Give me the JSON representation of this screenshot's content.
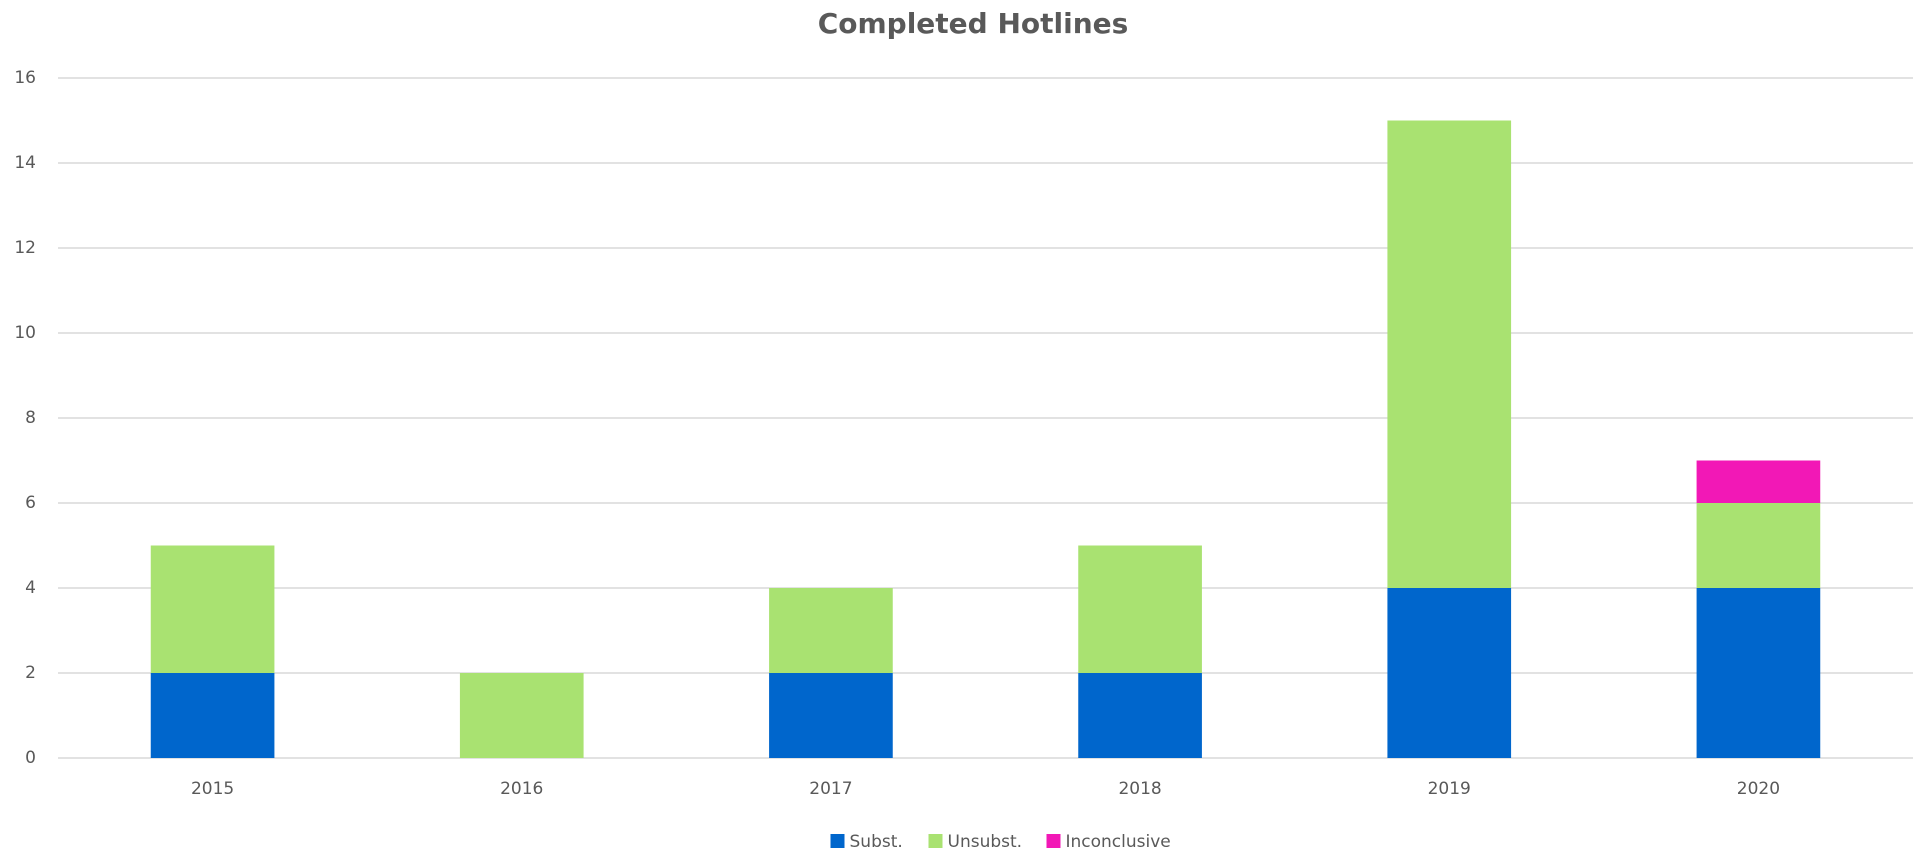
{
  "chart_data": {
    "type": "stacked_bar",
    "title": "Completed Hotlines",
    "categories": [
      "2015",
      "2016",
      "2017",
      "2018",
      "2019",
      "2020"
    ],
    "series": [
      {
        "name": "Subst.",
        "color": "#0066cc",
        "values": [
          2,
          0,
          2,
          2,
          4,
          4
        ]
      },
      {
        "name": "Unsubst.",
        "color": "#a9e271",
        "values": [
          3,
          2,
          2,
          3,
          11,
          2
        ]
      },
      {
        "name": "Inconclusive",
        "color": "#f218b6",
        "values": [
          0,
          0,
          0,
          0,
          0,
          1
        ]
      }
    ],
    "ylim": [
      0,
      16
    ],
    "yticks": [
      0,
      2,
      4,
      6,
      8,
      10,
      12,
      14,
      16
    ],
    "grid": true,
    "legend": "bottom"
  }
}
